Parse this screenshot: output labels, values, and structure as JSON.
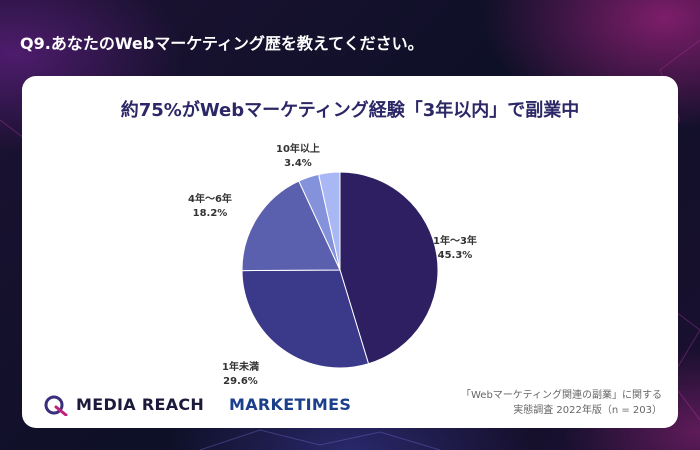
{
  "header": {
    "question": "Q9.あなたのWebマーケティング歴を教えてください。"
  },
  "chart_data": {
    "type": "pie",
    "title": "約75%がWebマーケティング経験「3年以内」で副業中",
    "slices": [
      {
        "label": "1年〜3年",
        "value": 45.3,
        "percent_label": "45.3%",
        "color": "#2e1f63"
      },
      {
        "label": "1年未満",
        "value": 29.6,
        "percent_label": "29.6%",
        "color": "#3b3a8a"
      },
      {
        "label": "4年〜6年",
        "value": 18.2,
        "percent_label": "18.2%",
        "color": "#5a5fae"
      },
      {
        "label": "10年以上",
        "value": 3.4,
        "percent_label": "3.4%",
        "color": "#8492db"
      },
      {
        "label": "",
        "value": 3.5,
        "percent_label": "",
        "color": "#a9b7f5"
      }
    ],
    "start_angle": "12 o'clock",
    "direction": "clockwise",
    "legend": "none"
  },
  "logos": {
    "media_reach": "MEDIA REACH",
    "marketimes": "MARKETIMES"
  },
  "source": {
    "line1": "「Webマーケティング関連の副業」に関する",
    "line2": "実態調査 2022年版（n = 203）"
  }
}
